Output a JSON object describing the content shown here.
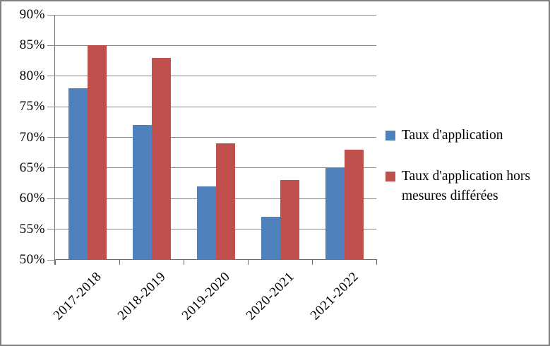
{
  "chart_data": {
    "type": "bar",
    "title": "",
    "xlabel": "",
    "ylabel": "",
    "categories": [
      "2017-2018",
      "2018-2019",
      "2019-2020",
      "2020-2021",
      "2021-2022"
    ],
    "series": [
      {
        "name": "Taux d'application",
        "color": "#4F81BD",
        "values": [
          78,
          72,
          62,
          57,
          65
        ]
      },
      {
        "name": "Taux d'application hors mesures différées",
        "color": "#C0504D",
        "values": [
          85,
          83,
          69,
          63,
          68
        ]
      }
    ],
    "ylim": [
      50,
      90
    ],
    "ytick_step": 5,
    "ytick_labels": [
      "50%",
      "55%",
      "60%",
      "65%",
      "70%",
      "75%",
      "80%",
      "85%",
      "90%"
    ],
    "grid": true,
    "legend_position": "right",
    "value_unit": "%"
  },
  "colors": {
    "series1": "#4F81BD",
    "series2": "#C0504D",
    "gridline": "#878787",
    "axis": "#6e6e6e",
    "frame_border": "#808080",
    "background": "#ffffff",
    "text": "#000000"
  }
}
